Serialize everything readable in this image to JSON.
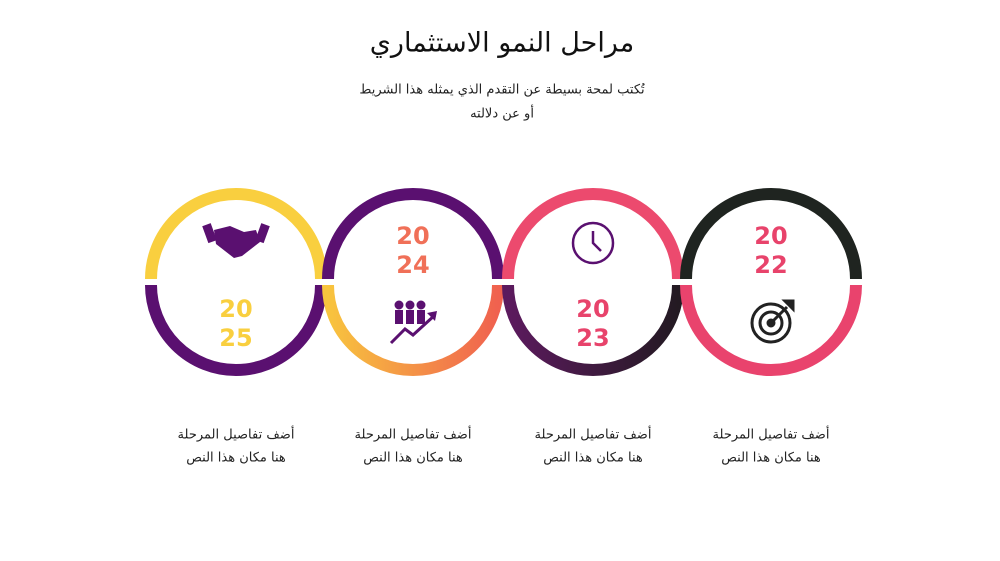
{
  "title": "مراحل النمو الاستثماري",
  "subtitle": [
    "تُكتب لمحة بسيطة عن التقدم الذي يمثله هذا الشريط",
    "أو عن دلالته"
  ],
  "stages": [
    {
      "year": [
        "20",
        "25"
      ],
      "description": [
        "أضف تفاصيل المرحلة",
        "هنا مكان هذا النص"
      ]
    },
    {
      "year": [
        "20",
        "24"
      ],
      "description": [
        "أضف تفاصيل المرحلة",
        "هنا مكان هذا النص"
      ]
    },
    {
      "year": [
        "20",
        "23"
      ],
      "description": [
        "أضف تفاصيل المرحلة",
        "هنا مكان هذا النص"
      ]
    },
    {
      "year": [
        "20",
        "22"
      ],
      "description": [
        "أضف تفاصيل المرحلة",
        "هنا مكان هذا النص"
      ]
    }
  ]
}
